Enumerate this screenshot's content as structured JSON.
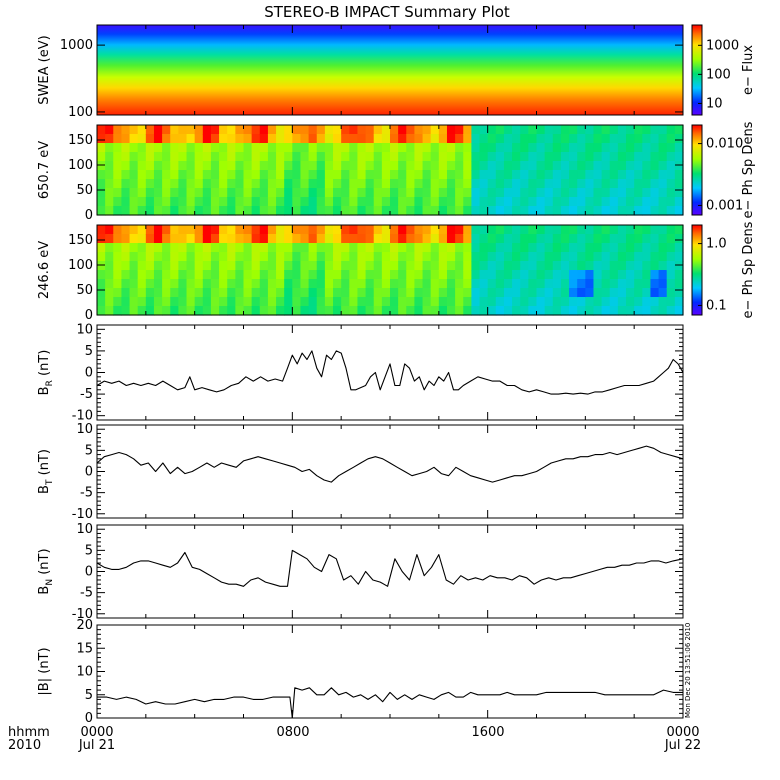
{
  "chart_data": {
    "type": "line",
    "title": "STEREO-B IMPACT Summary Plot",
    "x_label": "hhmm 2010",
    "x_axis_label_lines": [
      "hhmm",
      "2010"
    ],
    "x_ticks": [
      {
        "time": "0000",
        "date": "Jul 21",
        "hours": 0
      },
      {
        "time": "0800",
        "date": "",
        "hours": 8
      },
      {
        "time": "1600",
        "date": "",
        "hours": 16
      },
      {
        "time": "0000",
        "date": "Jul 22",
        "hours": 24
      }
    ],
    "xlim_hours": [
      0,
      24
    ],
    "stamp": "Mon Dec 20 13:51:06 2010",
    "spectrograms": [
      {
        "ylabel": "SWEA (eV)",
        "y_scale": "log",
        "ylim": [
          90,
          2000
        ],
        "y_ticks": [
          "100",
          "1000"
        ],
        "y_tick_values": [
          100,
          1000
        ],
        "colorbar_label": "e− Flux",
        "colorbar_scale": "log",
        "colorbar_ticks": [
          "10",
          "100",
          "1000"
        ],
        "colorbar_tick_values": [
          10,
          100,
          1000
        ],
        "colorbar_range": [
          4,
          5000
        ]
      },
      {
        "ylabel": "650.7 eV",
        "y_scale": "linear",
        "ylim": [
          0,
          180
        ],
        "y_ticks": [
          "0",
          "50",
          "100",
          "150"
        ],
        "y_tick_values": [
          0,
          50,
          100,
          150
        ],
        "colorbar_label": "e− Ph Sp Dens",
        "colorbar_scale": "log",
        "colorbar_ticks": [
          "0.001",
          "0.010"
        ],
        "colorbar_tick_values": [
          0.001,
          0.01
        ],
        "colorbar_range": [
          0.0007,
          0.02
        ]
      },
      {
        "ylabel": "246.6 eV",
        "y_scale": "linear",
        "ylim": [
          0,
          180
        ],
        "y_ticks": [
          "0",
          "50",
          "100",
          "150"
        ],
        "y_tick_values": [
          0,
          50,
          100,
          150
        ],
        "colorbar_label": "e− Ph Sp Dens",
        "colorbar_scale": "log",
        "colorbar_ticks": [
          "0.1",
          "1.0"
        ],
        "colorbar_tick_values": [
          0.1,
          1.0
        ],
        "colorbar_range": [
          0.07,
          2.0
        ]
      }
    ],
    "line_panels": [
      {
        "ylabel": "B",
        "ylabel_sub": "R",
        "ylabel_unit": " (nT)",
        "ylim": [
          -11,
          11
        ],
        "y_ticks": [
          "-10",
          "-5",
          "0",
          "5",
          "10"
        ],
        "y_tick_values": [
          -10,
          -5,
          0,
          5,
          10
        ],
        "x_hours": [
          0,
          0.3,
          0.6,
          0.9,
          1.2,
          1.5,
          1.8,
          2.1,
          2.4,
          2.7,
          3.0,
          3.3,
          3.6,
          3.8,
          4.0,
          4.3,
          4.6,
          4.9,
          5.2,
          5.5,
          5.8,
          6.1,
          6.4,
          6.7,
          7.0,
          7.3,
          7.6,
          7.8,
          8.0,
          8.2,
          8.4,
          8.6,
          8.8,
          9.0,
          9.2,
          9.4,
          9.6,
          9.8,
          10.0,
          10.2,
          10.4,
          10.6,
          10.8,
          11.0,
          11.2,
          11.4,
          11.6,
          11.8,
          12.0,
          12.2,
          12.4,
          12.6,
          12.8,
          13.0,
          13.2,
          13.4,
          13.6,
          13.8,
          14.0,
          14.2,
          14.4,
          14.6,
          14.8,
          15.0,
          15.3,
          15.6,
          15.9,
          16.2,
          16.5,
          16.8,
          17.1,
          17.4,
          17.7,
          18.0,
          18.3,
          18.6,
          18.9,
          19.2,
          19.5,
          19.8,
          20.1,
          20.4,
          20.7,
          21.0,
          21.3,
          21.6,
          21.9,
          22.2,
          22.5,
          22.8,
          23.0,
          23.2,
          23.4,
          23.6,
          23.8,
          24.0
        ],
        "values": [
          -3,
          -2,
          -2.5,
          -2,
          -3,
          -2.5,
          -3,
          -2.5,
          -3,
          -2,
          -3,
          -4,
          -3.5,
          -1,
          -4,
          -3.5,
          -4,
          -4.5,
          -4,
          -3,
          -2.5,
          -1,
          -2,
          -1,
          -2,
          -1.5,
          -2,
          1,
          4,
          2,
          4.5,
          3,
          5,
          1,
          -1,
          4,
          3,
          5,
          4.5,
          1,
          -4,
          -4,
          -3.5,
          -3,
          -1,
          0,
          -4,
          -1,
          2,
          -3,
          -3,
          2,
          1,
          -2,
          -1,
          -4,
          -2,
          -3,
          -1,
          -2,
          0,
          -4,
          -4,
          -3,
          -2,
          -1,
          -1.5,
          -2,
          -2,
          -3,
          -3,
          -4,
          -4.5,
          -4,
          -4.5,
          -5,
          -5,
          -4.8,
          -5,
          -4.8,
          -5,
          -4.5,
          -4.5,
          -4,
          -3.5,
          -3,
          -3,
          -3,
          -2.5,
          -2,
          -1,
          0,
          1,
          3,
          2,
          0
        ]
      },
      {
        "ylabel": "B",
        "ylabel_sub": "T",
        "ylabel_unit": " (nT)",
        "ylim": [
          -11,
          11
        ],
        "y_ticks": [
          "-10",
          "-5",
          "0",
          "5",
          "10"
        ],
        "y_tick_values": [
          -10,
          -5,
          0,
          5,
          10
        ],
        "x_hours": [
          0,
          0.3,
          0.6,
          0.9,
          1.2,
          1.5,
          1.8,
          2.1,
          2.4,
          2.7,
          3.0,
          3.3,
          3.6,
          3.9,
          4.2,
          4.5,
          4.8,
          5.1,
          5.4,
          5.7,
          6.0,
          6.3,
          6.6,
          6.9,
          7.2,
          7.5,
          7.8,
          8.1,
          8.4,
          8.7,
          9.0,
          9.3,
          9.6,
          9.9,
          10.2,
          10.5,
          10.8,
          11.1,
          11.4,
          11.7,
          12.0,
          12.3,
          12.6,
          12.9,
          13.2,
          13.5,
          13.8,
          14.1,
          14.4,
          14.7,
          15.0,
          15.3,
          15.6,
          15.9,
          16.2,
          16.5,
          16.8,
          17.1,
          17.4,
          17.7,
          18.0,
          18.3,
          18.6,
          18.9,
          19.2,
          19.5,
          19.8,
          20.1,
          20.4,
          20.7,
          21.0,
          21.3,
          21.6,
          21.9,
          22.2,
          22.5,
          22.8,
          23.1,
          23.4,
          23.7,
          24.0
        ],
        "values": [
          2,
          3.5,
          4,
          4.5,
          4,
          3,
          1.5,
          2,
          0,
          2,
          -0.5,
          1,
          -0.5,
          0,
          1,
          2,
          1,
          2,
          1.5,
          1,
          2.5,
          3,
          3.5,
          3,
          2.5,
          2,
          1.5,
          1,
          0,
          0.5,
          -1,
          -2,
          -2.5,
          -1,
          0,
          1,
          2,
          3,
          3.5,
          3,
          2,
          1,
          0,
          -1,
          -0.5,
          0,
          1,
          -0.5,
          -1,
          1,
          0,
          -1,
          -1.5,
          -2,
          -2.5,
          -2,
          -1.5,
          -1,
          -1,
          -0.5,
          0,
          1,
          2,
          2.5,
          3,
          3,
          3.5,
          3.5,
          4,
          4,
          4.5,
          4,
          4.5,
          5,
          5.5,
          6,
          5.5,
          4.5,
          4,
          3.5,
          3
        ]
      },
      {
        "ylabel": "B",
        "ylabel_sub": "N",
        "ylabel_unit": " (nT)",
        "ylim": [
          -11,
          11
        ],
        "y_ticks": [
          "-10",
          "-5",
          "0",
          "5",
          "10"
        ],
        "y_tick_values": [
          -10,
          -5,
          0,
          5,
          10
        ],
        "x_hours": [
          0,
          0.3,
          0.6,
          0.9,
          1.2,
          1.5,
          1.8,
          2.1,
          2.4,
          2.7,
          3.0,
          3.3,
          3.6,
          3.9,
          4.2,
          4.5,
          4.8,
          5.1,
          5.4,
          5.7,
          6.0,
          6.3,
          6.6,
          6.9,
          7.2,
          7.5,
          7.8,
          8.0,
          8.3,
          8.6,
          8.9,
          9.2,
          9.5,
          9.8,
          10.1,
          10.4,
          10.7,
          11.0,
          11.3,
          11.6,
          11.9,
          12.2,
          12.5,
          12.8,
          13.1,
          13.4,
          13.7,
          14.0,
          14.3,
          14.6,
          14.9,
          15.2,
          15.5,
          15.8,
          16.1,
          16.4,
          16.7,
          17.0,
          17.3,
          17.6,
          17.9,
          18.2,
          18.5,
          18.8,
          19.1,
          19.4,
          19.7,
          20.0,
          20.3,
          20.6,
          20.9,
          21.2,
          21.5,
          21.8,
          22.1,
          22.4,
          22.7,
          23.0,
          23.3,
          23.6,
          24.0
        ],
        "values": [
          2,
          1,
          0.5,
          0.5,
          1,
          2,
          2.5,
          2.5,
          2,
          1.5,
          1,
          2,
          4.5,
          1,
          0.5,
          -0.5,
          -1.5,
          -2.5,
          -3,
          -3,
          -3.5,
          -2,
          -1.5,
          -2.5,
          -3,
          -3.5,
          -3.5,
          5,
          4,
          3,
          1,
          0,
          4,
          3,
          -2,
          -1,
          -3,
          0,
          -2,
          -2.5,
          -3.5,
          3,
          0,
          -2,
          4,
          -1,
          1,
          4,
          -2,
          -3,
          -1,
          -2,
          -1.5,
          -2,
          -1,
          -1.5,
          -1.5,
          -2,
          -1,
          -1.5,
          -3,
          -2,
          -1.5,
          -2,
          -1.5,
          -1.5,
          -1,
          -0.5,
          0,
          0.5,
          1,
          1,
          1.5,
          1.5,
          2,
          2,
          2.5,
          2.5,
          2,
          2.5,
          3
        ]
      },
      {
        "ylabel": "|B|",
        "ylabel_sub": "",
        "ylabel_unit": " (nT)",
        "ylim": [
          0,
          20
        ],
        "y_ticks": [
          "0",
          "5",
          "10",
          "15",
          "20"
        ],
        "y_tick_values": [
          0,
          5,
          10,
          15,
          20
        ],
        "x_hours": [
          0,
          0.4,
          0.8,
          1.2,
          1.6,
          2.0,
          2.4,
          2.8,
          3.2,
          3.6,
          4.0,
          4.4,
          4.8,
          5.2,
          5.6,
          6.0,
          6.4,
          6.8,
          7.2,
          7.6,
          7.9,
          8.0,
          8.1,
          8.4,
          8.7,
          9.0,
          9.3,
          9.6,
          9.9,
          10.2,
          10.5,
          10.8,
          11.1,
          11.4,
          11.7,
          12.0,
          12.3,
          12.6,
          12.9,
          13.2,
          13.5,
          13.8,
          14.1,
          14.4,
          14.7,
          15.0,
          15.3,
          15.6,
          15.9,
          16.2,
          16.5,
          16.8,
          17.1,
          17.4,
          17.7,
          18.0,
          18.4,
          18.8,
          19.2,
          19.6,
          20.0,
          20.4,
          20.8,
          21.2,
          21.6,
          22.0,
          22.4,
          22.8,
          23.2,
          23.6,
          24.0
        ],
        "values": [
          4.5,
          4.5,
          4,
          4.5,
          4,
          3,
          3.5,
          3,
          3,
          3.5,
          4,
          3.5,
          4,
          4,
          4.5,
          4.5,
          4,
          4,
          4.5,
          4.5,
          4.5,
          0,
          6.5,
          6,
          6.5,
          5,
          5,
          6.5,
          5,
          5.5,
          4.5,
          5,
          4,
          5,
          3.5,
          5.5,
          4,
          5,
          4,
          5,
          4.5,
          4,
          5,
          5.5,
          4.5,
          4.5,
          5.5,
          5,
          5,
          5,
          5,
          5.5,
          5,
          5,
          5,
          5,
          5.5,
          5.5,
          5.5,
          5.5,
          5.5,
          5.5,
          5,
          5,
          5,
          5,
          5,
          5,
          6,
          5.5,
          5.5
        ]
      }
    ]
  }
}
